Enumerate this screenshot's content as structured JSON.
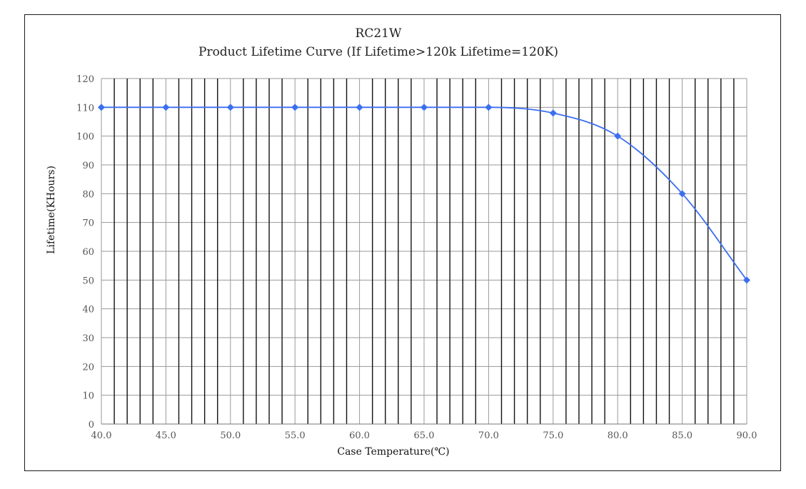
{
  "chart_data": {
    "type": "line",
    "title": "RC21W",
    "subtitle": "Product Lifetime Curve (If Lifetime>120k Lifetime=120K)",
    "xlabel": "Case Temperature(℃)",
    "ylabel": "Lifetime(KHours)",
    "x": [
      40,
      45,
      50,
      55,
      60,
      65,
      70,
      75,
      80,
      85,
      90
    ],
    "series": [
      {
        "values": [
          110,
          110,
          110,
          110,
          110,
          110,
          110,
          108,
          100,
          80,
          50
        ]
      }
    ],
    "xlim": [
      40,
      90
    ],
    "ylim": [
      0,
      120
    ],
    "x_ticks": [
      "40.0",
      "45.0",
      "50.0",
      "55.0",
      "60.0",
      "65.0",
      "70.0",
      "75.0",
      "80.0",
      "85.0",
      "90.0"
    ],
    "y_ticks": [
      "0",
      "10",
      "20",
      "30",
      "40",
      "50",
      "60",
      "70",
      "80",
      "90",
      "100",
      "110",
      "120"
    ],
    "x_minor_step": 1,
    "grid": true,
    "line_color": "#3b6ff0",
    "grid_minor_color": "#111111",
    "grid_major_color": "#9a9a9a"
  }
}
